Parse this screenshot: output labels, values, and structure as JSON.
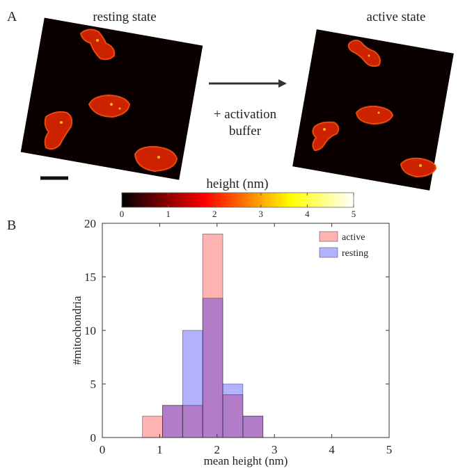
{
  "panel_a": {
    "label": "A",
    "left_title": "resting state",
    "right_title": "active state",
    "arrow_label": [
      "+ activation",
      "buffer"
    ]
  },
  "colorbar": {
    "label": "height (nm)",
    "lim": [
      0,
      5
    ],
    "ticks": [
      0,
      1,
      2,
      3,
      4,
      5
    ],
    "colormap": "hot"
  },
  "chart_data": {
    "type": "histogram",
    "panel_label": "B",
    "x_label": "mean height (nm)",
    "y_label": "#mitochondria",
    "bins": [
      0.7,
      1.05,
      1.4,
      1.75,
      2.1,
      2.45,
      2.8
    ],
    "series": [
      {
        "name": "active",
        "color": "#ff0000",
        "values": [
          2,
          3,
          3,
          19,
          4,
          2
        ]
      },
      {
        "name": "resting",
        "color": "#0000ff",
        "values": [
          0,
          3,
          10,
          13,
          5,
          2
        ]
      }
    ],
    "alpha": 0.3,
    "xlim": [
      0,
      5
    ],
    "xticks": [
      0,
      1,
      2,
      3,
      4,
      5
    ],
    "ylim": [
      0,
      20
    ],
    "yticks": [
      0,
      5,
      10,
      15,
      20
    ],
    "legend": "upper right"
  }
}
